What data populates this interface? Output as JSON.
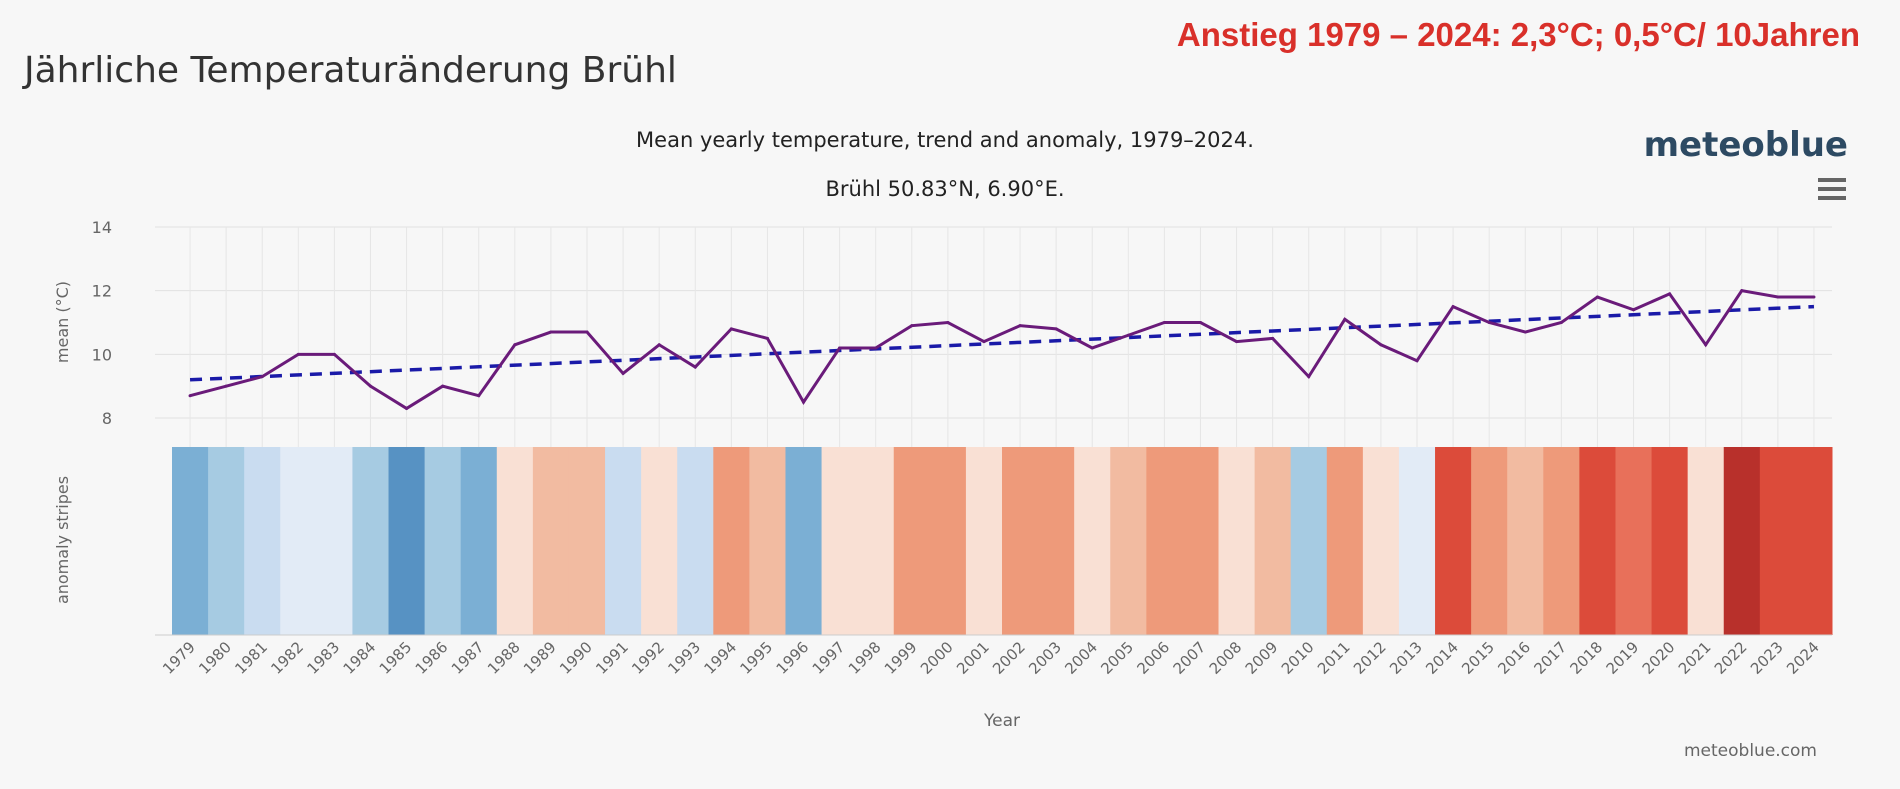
{
  "page_title": "Jährliche Temperaturänderung Brühl",
  "headline": "Anstieg 1979 – 2024: 2,3°C; 0,5°C/ 10Jahren",
  "logo_text": "meteoblue",
  "credit": "meteoblue.com",
  "icons": {
    "menu": "hamburger-menu-icon"
  },
  "chart_data": {
    "type": "line",
    "title": "Mean yearly temperature, trend and anomaly, 1979–2024.",
    "subtitle": "Brühl 50.83°N, 6.90°E.",
    "xlabel": "Year",
    "ylabel": "mean (°C)",
    "stripes_label": "anomaly stripes",
    "ylim": [
      7,
      14
    ],
    "yticks": [
      8,
      10,
      12,
      14
    ],
    "grid": true,
    "categories": [
      1979,
      1980,
      1981,
      1982,
      1983,
      1984,
      1985,
      1986,
      1987,
      1988,
      1989,
      1990,
      1991,
      1992,
      1993,
      1994,
      1995,
      1996,
      1997,
      1998,
      1999,
      2000,
      2001,
      2002,
      2003,
      2004,
      2005,
      2006,
      2007,
      2008,
      2009,
      2010,
      2011,
      2012,
      2013,
      2014,
      2015,
      2016,
      2017,
      2018,
      2019,
      2020,
      2021,
      2022,
      2023,
      2024
    ],
    "series": [
      {
        "type": "line",
        "color": "#6a1b7a",
        "values": [
          8.7,
          9.0,
          9.3,
          10.0,
          10.0,
          9.0,
          8.3,
          9.0,
          8.7,
          10.3,
          10.7,
          10.7,
          9.4,
          10.3,
          9.6,
          10.8,
          10.5,
          8.5,
          10.2,
          10.2,
          10.9,
          11.0,
          10.4,
          10.9,
          10.8,
          10.2,
          10.6,
          11.0,
          11.0,
          10.4,
          10.5,
          9.3,
          11.1,
          10.3,
          9.8,
          11.5,
          11.0,
          10.7,
          11.0,
          11.8,
          11.4,
          11.9,
          10.3,
          12.0,
          11.8,
          11.8
        ]
      },
      {
        "type": "trend",
        "style": "dashed",
        "color": "#1a1aa8",
        "start": 9.2,
        "end": 11.5
      }
    ],
    "stripe_colors": [
      "#7bafd4",
      "#a6cbe2",
      "#c9dcf0",
      "#e2ebf6",
      "#e2ebf6",
      "#a6cbe2",
      "#5792c3",
      "#a6cbe2",
      "#7bafd4",
      "#f9e0d4",
      "#f2bba1",
      "#f2bba1",
      "#c9dcf0",
      "#f9e0d4",
      "#c9dcf0",
      "#ee9a7a",
      "#f2bba1",
      "#7bafd4",
      "#f9e0d4",
      "#f9e0d4",
      "#ee9a7a",
      "#ee9a7a",
      "#f9e0d4",
      "#ee9a7a",
      "#ee9a7a",
      "#f9e0d4",
      "#f2bba1",
      "#ee9a7a",
      "#ee9a7a",
      "#f9e0d4",
      "#f2bba1",
      "#a6cbe2",
      "#ee9a7a",
      "#f9e0d4",
      "#e2ebf6",
      "#dc4b3a",
      "#ee9a7a",
      "#f2bba1",
      "#ee9a7a",
      "#dc4b3a",
      "#e8705a",
      "#dc4b3a",
      "#f9e0d4",
      "#b8302b",
      "#dc4b3a",
      "#dc4b3a"
    ]
  }
}
